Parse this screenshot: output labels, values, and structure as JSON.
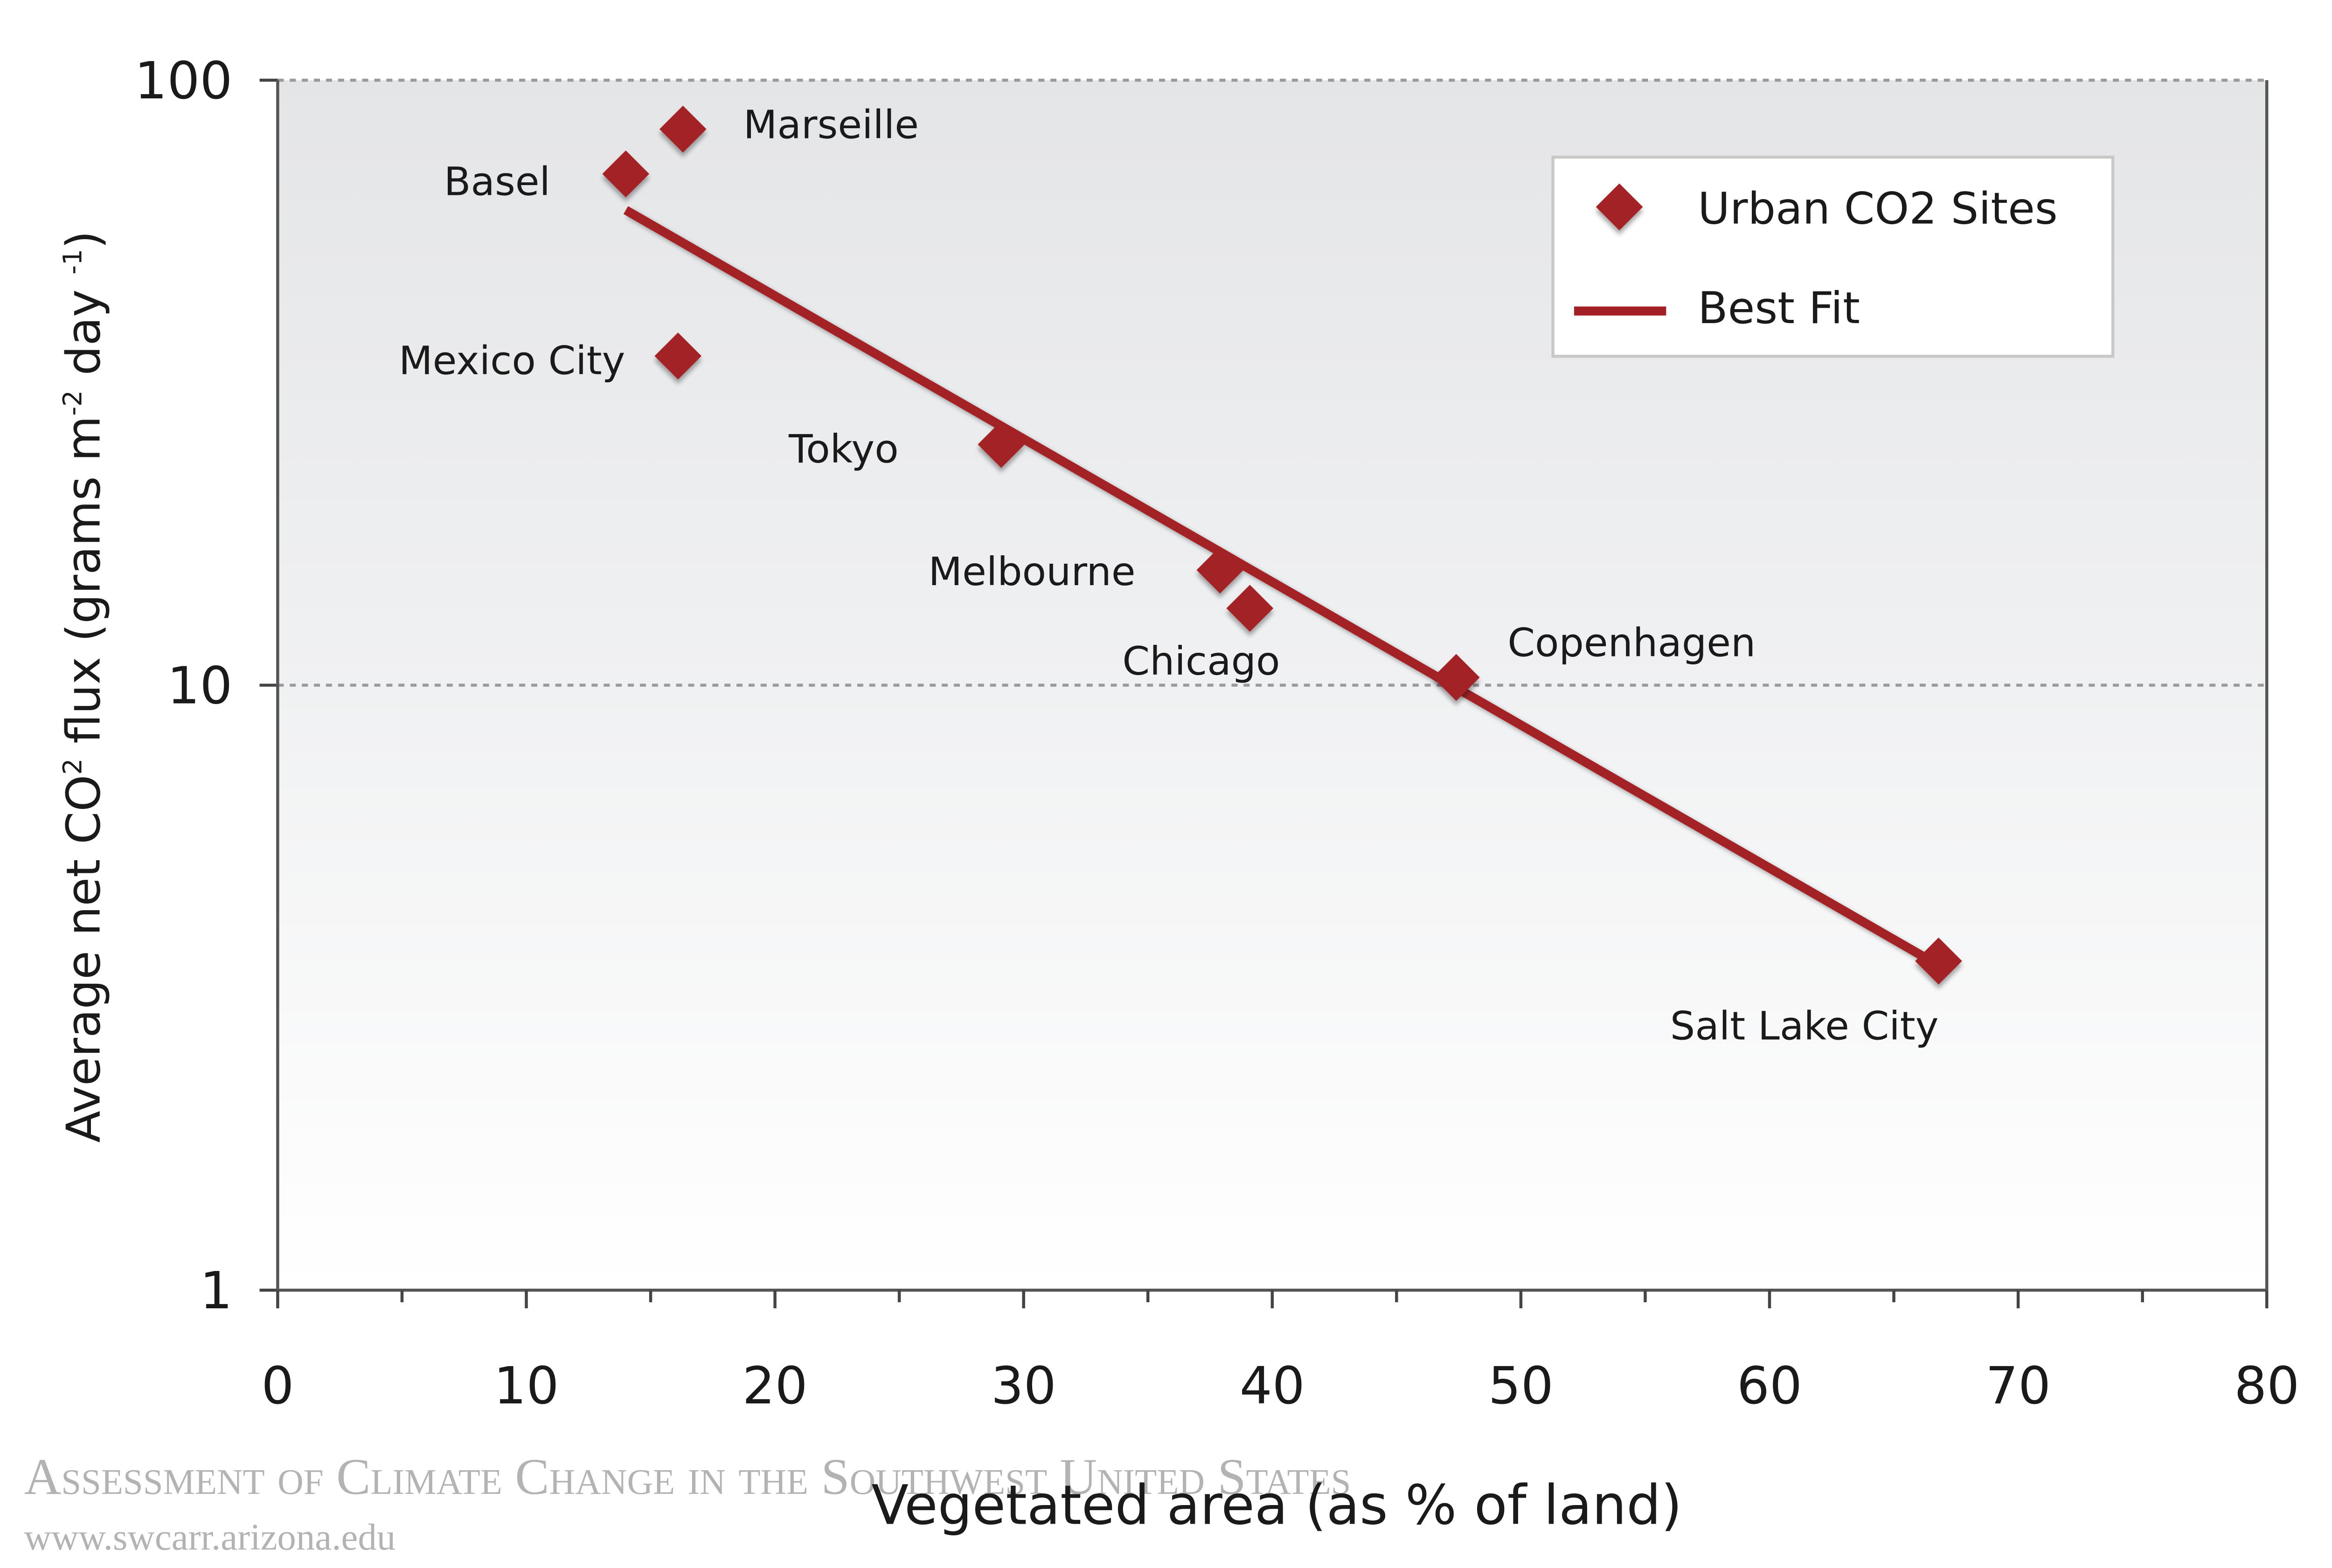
{
  "chart_data": {
    "type": "scatter",
    "xlabel": "Vegetated area (as % of land)",
    "ylabel_parts": [
      "Average net CO",
      "2",
      " flux (grams m",
      "-2",
      " day ",
      "-1",
      ")"
    ],
    "xlim": [
      0,
      80
    ],
    "ylim": [
      1,
      100
    ],
    "y_scale": "log",
    "x_ticks": [
      "0",
      "10",
      "20",
      "30",
      "40",
      "50",
      "60",
      "70",
      "80"
    ],
    "y_ticks": [
      "1",
      "10",
      "100"
    ],
    "grid": "dashed horizontal at 10 and 100",
    "legend_position": "top-right",
    "colors": {
      "marker": "#a32126",
      "line": "#a32126",
      "background_top": "#e4e5e7",
      "background_bottom": "#ffffff"
    },
    "series": [
      {
        "name": "Urban CO2 Sites",
        "kind": "scatter",
        "marker": "diamond",
        "points": [
          {
            "label": "Marseille",
            "x": 16.3,
            "y": 83
          },
          {
            "label": "Basel",
            "x": 14.0,
            "y": 70
          },
          {
            "label": "Mexico City",
            "x": 16.1,
            "y": 35
          },
          {
            "label": "Tokyo",
            "x": 29.1,
            "y": 25
          },
          {
            "label": "Melbourne",
            "x": 37.9,
            "y": 15.5
          },
          {
            "label": "Chicago",
            "x": 39.1,
            "y": 13.4
          },
          {
            "label": "Copenhagen",
            "x": 47.4,
            "y": 10.3
          },
          {
            "label": "Salt Lake City",
            "x": 66.8,
            "y": 3.5
          }
        ]
      },
      {
        "name": "Best Fit",
        "kind": "line",
        "points": [
          {
            "x": 14.0,
            "y": 61
          },
          {
            "x": 66.5,
            "y": 3.5
          }
        ]
      }
    ]
  },
  "watermark": {
    "title": "Assessment of Climate Change in the Southwest United States",
    "url": "www.swcarr.arizona.edu"
  }
}
